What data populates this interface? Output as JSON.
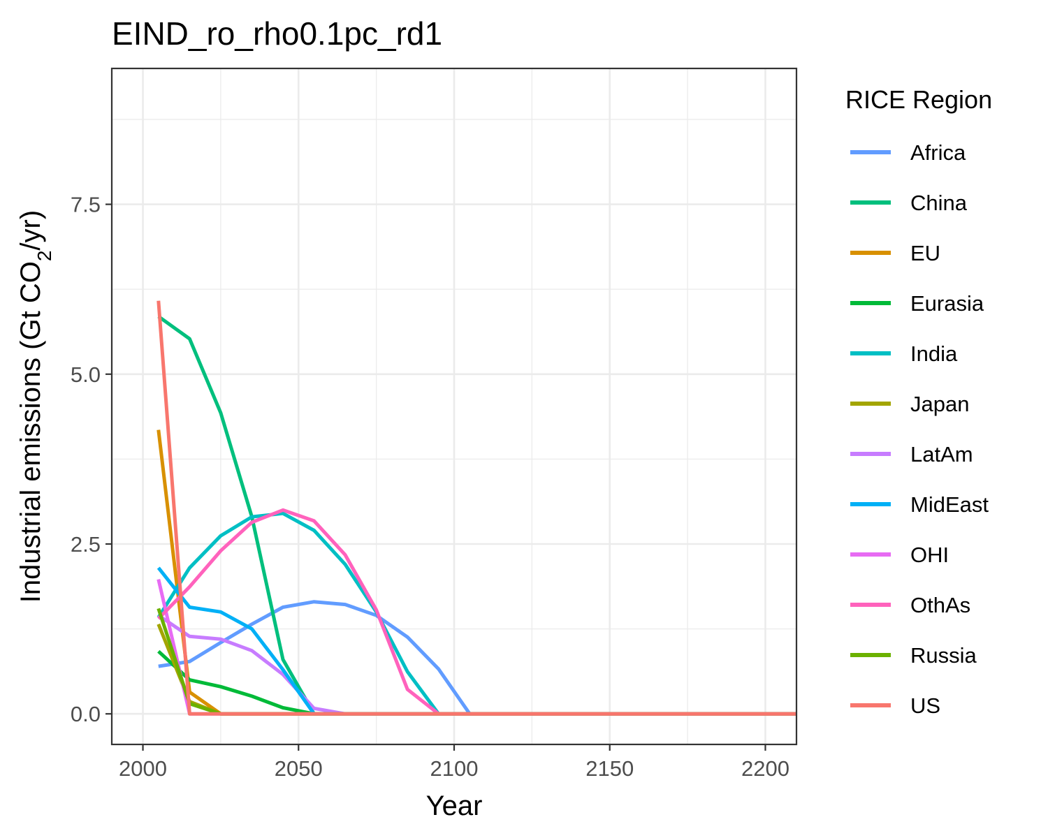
{
  "chart_data": {
    "type": "line",
    "title": "EIND_ro_rho0.1pc_rd1",
    "xlabel": "Year",
    "ylabel": {
      "prefix": "Industrial emissions (Gt CO",
      "subscript": "2",
      "suffix": "/yr)"
    },
    "xlim": [
      1990,
      2210
    ],
    "ylim": [
      -0.45,
      9.5
    ],
    "x_ticks": [
      2000,
      2050,
      2100,
      2150,
      2200
    ],
    "x_tick_labels": [
      "2000",
      "2050",
      "2100",
      "2150",
      "2200"
    ],
    "y_ticks": [
      0,
      2.5,
      5,
      7.5
    ],
    "y_tick_labels": [
      "0.0",
      "2.5",
      "5.0",
      "7.5"
    ],
    "grid": true,
    "legend": {
      "title": "RICE Region",
      "position": "right"
    },
    "x": [
      2005,
      2015,
      2025,
      2035,
      2045,
      2055,
      2065,
      2075,
      2085,
      2095,
      2105,
      2115,
      2125,
      2135,
      2145,
      2155,
      2165,
      2175,
      2185,
      2195,
      2205,
      2215
    ],
    "series": [
      {
        "name": "Africa",
        "color": "#619CFF",
        "values": [
          0.7,
          0.77,
          1.05,
          1.32,
          1.57,
          1.65,
          1.61,
          1.45,
          1.13,
          0.66,
          0,
          0,
          0,
          0,
          0,
          0,
          0,
          0,
          0,
          0,
          0,
          0
        ]
      },
      {
        "name": "China",
        "color": "#00BF7D",
        "values": [
          5.85,
          5.52,
          4.43,
          2.9,
          0.8,
          0,
          0,
          0,
          0,
          0,
          0,
          0,
          0,
          0,
          0,
          0,
          0,
          0,
          0,
          0,
          0,
          0
        ]
      },
      {
        "name": "EU",
        "color": "#D89000",
        "values": [
          4.18,
          0.32,
          0,
          0,
          0,
          0,
          0,
          0,
          0,
          0,
          0,
          0,
          0,
          0,
          0,
          0,
          0,
          0,
          0,
          0,
          0,
          0
        ]
      },
      {
        "name": "Eurasia",
        "color": "#00BA38",
        "values": [
          0.92,
          0.5,
          0.4,
          0.26,
          0.09,
          0,
          0,
          0,
          0,
          0,
          0,
          0,
          0,
          0,
          0,
          0,
          0,
          0,
          0,
          0,
          0,
          0
        ]
      },
      {
        "name": "India",
        "color": "#00BFC4",
        "values": [
          1.42,
          2.15,
          2.62,
          2.9,
          2.95,
          2.7,
          2.2,
          1.5,
          0.62,
          0,
          0,
          0,
          0,
          0,
          0,
          0,
          0,
          0,
          0,
          0,
          0,
          0
        ]
      },
      {
        "name": "Japan",
        "color": "#A3A500",
        "values": [
          1.32,
          0.18,
          0,
          0,
          0,
          0,
          0,
          0,
          0,
          0,
          0,
          0,
          0,
          0,
          0,
          0,
          0,
          0,
          0,
          0,
          0,
          0
        ]
      },
      {
        "name": "LatAm",
        "color": "#C77CFF",
        "values": [
          1.45,
          1.14,
          1.1,
          0.93,
          0.58,
          0.08,
          0,
          0,
          0,
          0,
          0,
          0,
          0,
          0,
          0,
          0,
          0,
          0,
          0,
          0,
          0,
          0
        ]
      },
      {
        "name": "MidEast",
        "color": "#00B0F6",
        "values": [
          2.15,
          1.57,
          1.5,
          1.25,
          0.65,
          0,
          0,
          0,
          0,
          0,
          0,
          0,
          0,
          0,
          0,
          0,
          0,
          0,
          0,
          0,
          0,
          0
        ]
      },
      {
        "name": "OHI",
        "color": "#E76BF3",
        "values": [
          1.98,
          0,
          0,
          0,
          0,
          0,
          0,
          0,
          0,
          0,
          0,
          0,
          0,
          0,
          0,
          0,
          0,
          0,
          0,
          0,
          0,
          0
        ]
      },
      {
        "name": "OthAs",
        "color": "#FF62BC",
        "values": [
          1.4,
          1.87,
          2.4,
          2.82,
          3.0,
          2.84,
          2.34,
          1.53,
          0.36,
          0,
          0,
          0,
          0,
          0,
          0,
          0,
          0,
          0,
          0,
          0,
          0,
          0
        ]
      },
      {
        "name": "Russia",
        "color": "#6BB100",
        "values": [
          1.55,
          0.15,
          0,
          0,
          0,
          0,
          0,
          0,
          0,
          0,
          0,
          0,
          0,
          0,
          0,
          0,
          0,
          0,
          0,
          0,
          0,
          0
        ]
      },
      {
        "name": "US",
        "color": "#F8766D",
        "values": [
          6.08,
          0,
          0,
          0,
          0,
          0,
          0,
          0,
          0,
          0,
          0,
          0,
          0,
          0,
          0,
          0,
          0,
          0,
          0,
          0,
          0,
          0
        ]
      }
    ]
  }
}
